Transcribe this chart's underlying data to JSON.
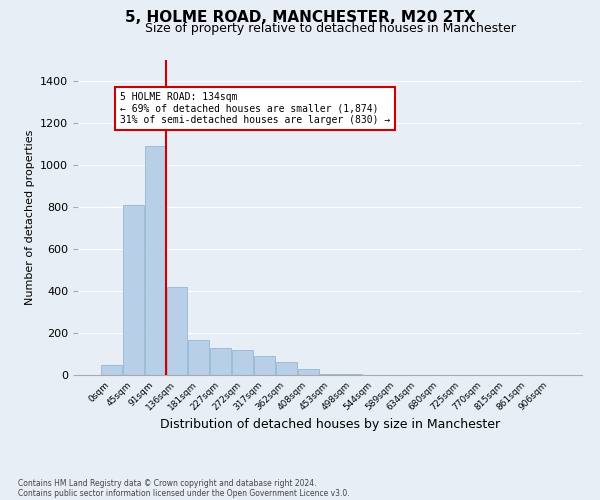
{
  "title1": "5, HOLME ROAD, MANCHESTER, M20 2TX",
  "title2": "Size of property relative to detached houses in Manchester",
  "xlabel": "Distribution of detached houses by size in Manchester",
  "ylabel": "Number of detached properties",
  "footnote1": "Contains HM Land Registry data © Crown copyright and database right 2024.",
  "footnote2": "Contains public sector information licensed under the Open Government Licence v3.0.",
  "bin_labels": [
    "0sqm",
    "45sqm",
    "91sqm",
    "136sqm",
    "181sqm",
    "227sqm",
    "272sqm",
    "317sqm",
    "362sqm",
    "408sqm",
    "453sqm",
    "498sqm",
    "544sqm",
    "589sqm",
    "634sqm",
    "680sqm",
    "725sqm",
    "770sqm",
    "815sqm",
    "861sqm",
    "906sqm"
  ],
  "bar_heights": [
    50,
    810,
    1090,
    420,
    165,
    130,
    120,
    90,
    60,
    30,
    5,
    5,
    0,
    0,
    0,
    0,
    0,
    0,
    0,
    0,
    0
  ],
  "bar_color": "#b8cfe8",
  "bar_edge_color": "#8ab0d0",
  "vline_color": "#cc0000",
  "annotation_text": "5 HOLME ROAD: 134sqm\n← 69% of detached houses are smaller (1,874)\n31% of semi-detached houses are larger (830) →",
  "annotation_box_color": "#ffffff",
  "annotation_box_edge": "#cc0000",
  "ylim": [
    0,
    1500
  ],
  "yticks": [
    0,
    200,
    400,
    600,
    800,
    1000,
    1200,
    1400
  ],
  "bg_color": "#e8eef5",
  "plot_bg_color": "#e8eef5",
  "grid_color": "#ffffff",
  "title1_fontsize": 11,
  "title2_fontsize": 9,
  "xlabel_fontsize": 9,
  "ylabel_fontsize": 8
}
